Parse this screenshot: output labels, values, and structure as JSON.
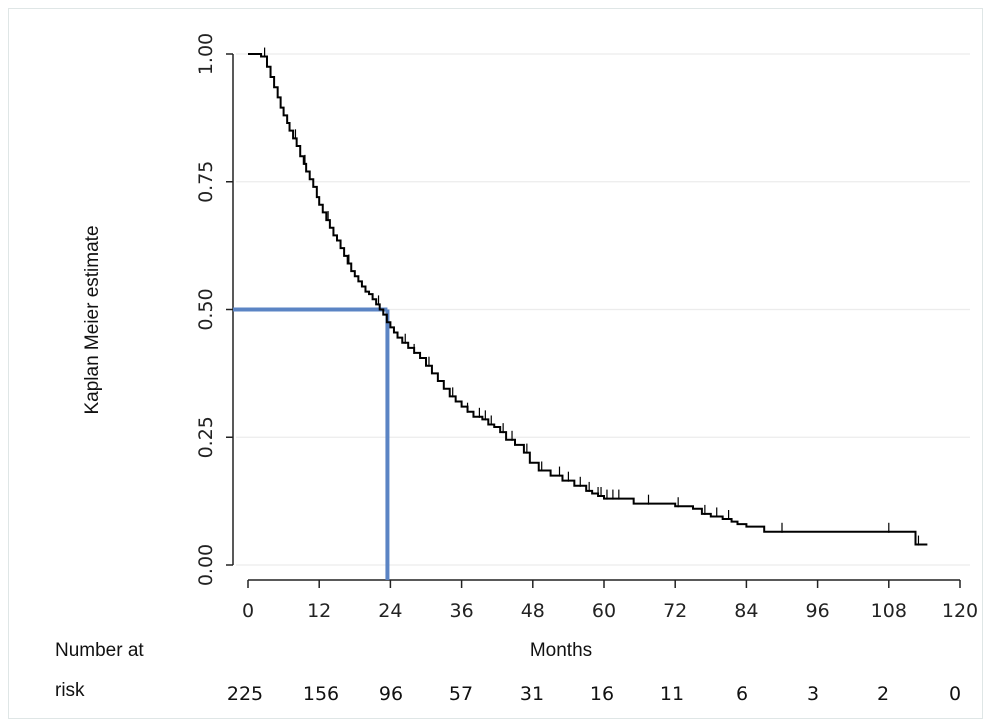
{
  "chart_data": {
    "type": "line",
    "title": "",
    "xlabel": "Months",
    "ylabel": "Kaplan Meier estimate",
    "xlim": [
      0,
      120
    ],
    "ylim": [
      0,
      1
    ],
    "x_ticks": [
      0,
      12,
      24,
      36,
      48,
      60,
      72,
      84,
      96,
      108,
      120
    ],
    "x_tick_labels": [
      "0",
      "12",
      "24",
      "36",
      "48",
      "60",
      "72",
      "84",
      "96",
      "108",
      "120"
    ],
    "y_ticks": [
      0,
      0.25,
      0.5,
      0.75,
      1.0
    ],
    "y_tick_labels": [
      "0.00",
      "0.25",
      "0.50",
      "0.75",
      "1.00"
    ],
    "grid": "horizontal",
    "series": [
      {
        "color": "#000000",
        "step": true,
        "x": [
          0,
          2.2,
          3.2,
          3.8,
          4.4,
          5.0,
          5.5,
          6.0,
          6.6,
          7.0,
          7.6,
          8.2,
          8.8,
          9.4,
          9.8,
          10.4,
          11.0,
          11.6,
          12.0,
          12.6,
          13.2,
          13.8,
          14.4,
          15.0,
          15.6,
          16.2,
          16.8,
          17.4,
          18.0,
          18.6,
          19.2,
          19.8,
          20.4,
          21.0,
          21.6,
          22.2,
          22.8,
          23.4,
          24.0,
          24.6,
          25.2,
          26.0,
          27.0,
          28.0,
          29.0,
          30.0,
          31.0,
          32.0,
          33.0,
          34.0,
          35.0,
          36.0,
          37.0,
          38.0,
          39.5,
          40.5,
          41.5,
          42.5,
          43.5,
          45.0,
          46.5,
          47.5,
          49.0,
          51.0,
          53.0,
          55.0,
          57.0,
          58.0,
          59.0,
          60.0,
          63.0,
          65.0,
          69.0,
          72.0,
          75.0,
          76.5,
          78.0,
          80.0,
          81.5,
          82.5,
          84.0,
          87.0,
          100.0,
          110.0,
          112.5,
          114.0,
          114.5
        ],
        "y": [
          1.0,
          0.995,
          0.975,
          0.955,
          0.935,
          0.915,
          0.895,
          0.88,
          0.865,
          0.85,
          0.835,
          0.82,
          0.8,
          0.785,
          0.77,
          0.755,
          0.74,
          0.72,
          0.705,
          0.69,
          0.675,
          0.66,
          0.645,
          0.635,
          0.62,
          0.605,
          0.59,
          0.575,
          0.565,
          0.555,
          0.545,
          0.535,
          0.53,
          0.52,
          0.51,
          0.5,
          0.49,
          0.475,
          0.465,
          0.455,
          0.445,
          0.435,
          0.425,
          0.415,
          0.405,
          0.39,
          0.375,
          0.36,
          0.345,
          0.33,
          0.32,
          0.31,
          0.3,
          0.29,
          0.285,
          0.275,
          0.27,
          0.26,
          0.245,
          0.235,
          0.22,
          0.2,
          0.185,
          0.175,
          0.165,
          0.155,
          0.145,
          0.14,
          0.135,
          0.13,
          0.13,
          0.12,
          0.12,
          0.115,
          0.11,
          0.1,
          0.095,
          0.09,
          0.085,
          0.08,
          0.075,
          0.065,
          0.065,
          0.065,
          0.04,
          0.04,
          0.04
        ],
        "censor_x": [
          2.8,
          3.8,
          8.0,
          9.6,
          13.5,
          17.0,
          22.0,
          26.5,
          28.0,
          30.5,
          34.5,
          37.0,
          39.0,
          40.0,
          41.0,
          43.0,
          44.5,
          47.0,
          49.5,
          52.5,
          54.0,
          56.0,
          57.5,
          59.0,
          59.5,
          60.5,
          61.5,
          62.5,
          67.5,
          72.5,
          77.0,
          79.0,
          81.0,
          90.0,
          108.0,
          113.0
        ]
      }
    ],
    "reference_lines": {
      "color": "#5b84c4",
      "median_survival": 0.5,
      "median_time": 23.5
    }
  },
  "risk_table": {
    "label_line1": "Number at",
    "label_line2": "risk",
    "counts": [
      "225",
      "156",
      "96",
      "57",
      "31",
      "16",
      "11",
      "6",
      "3",
      "2",
      "0"
    ]
  }
}
